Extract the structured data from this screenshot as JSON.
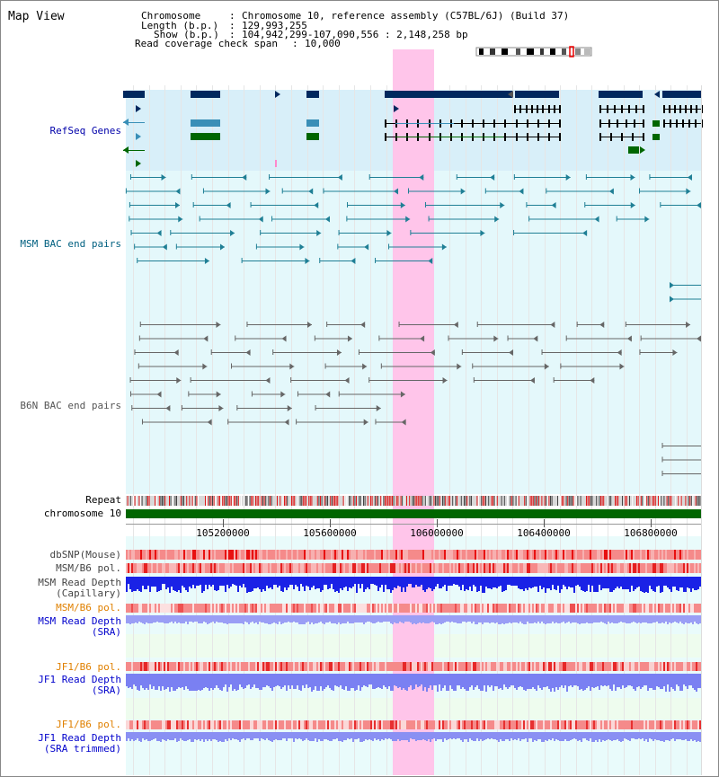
{
  "page": {
    "title": "Map View"
  },
  "info": {
    "chromosome_label": "Chromosome",
    "chromosome_value": "Chromosome 10, reference assembly (C57BL/6J) (Build 37)",
    "length_label": "Length (b.p.)",
    "length_value": "129,993,255",
    "show_label": "Show (b.p.)",
    "show_value": "104,942,299-107,090,556 : 2,148,258 bp",
    "coverage_label": "Read coverage check span",
    "coverage_value": "10,000"
  },
  "tracks": {
    "refseq": "RefSeq Genes",
    "msm_bac": "MSM BAC end pairs",
    "b6n_bac": "B6N BAC end pairs",
    "repeat": "Repeat",
    "chromosome": "chromosome 10",
    "dbsnp": "dbSNP(Mouse)",
    "msm_b6_pol": "MSM/B6 pol.",
    "msm_depth_cap_1": "MSM Read Depth",
    "msm_depth_cap_2": "(Capillary)",
    "msm_b6_pol_sra": "MSM/B6 pol.",
    "msm_depth_sra_1": "MSM Read Depth",
    "msm_depth_sra_2": "(SRA)",
    "jf1_b6_pol": "JF1/B6 pol.",
    "jf1_depth_1": "JF1 Read Depth",
    "jf1_depth_2": "(SRA)",
    "jf1_b6_pol_trim": "JF1/B6 pol.",
    "jf1_trim_1": "JF1 Read Depth",
    "jf1_trim_2": "(SRA trimmed)"
  },
  "axis": {
    "ticks": [
      "105200000",
      "105600000",
      "106000000",
      "106400000",
      "106800000"
    ]
  },
  "colors": {
    "refseq_label": "#0000aa",
    "msm_label": "#006080",
    "b6n_label": "#555555",
    "pol_orange": "#e08000",
    "depth_blue": "#0000cc",
    "highlight": "#ffccee",
    "gene_dark": "#00285e",
    "gene_green": "#006600",
    "chrom_green": "#006600"
  }
}
